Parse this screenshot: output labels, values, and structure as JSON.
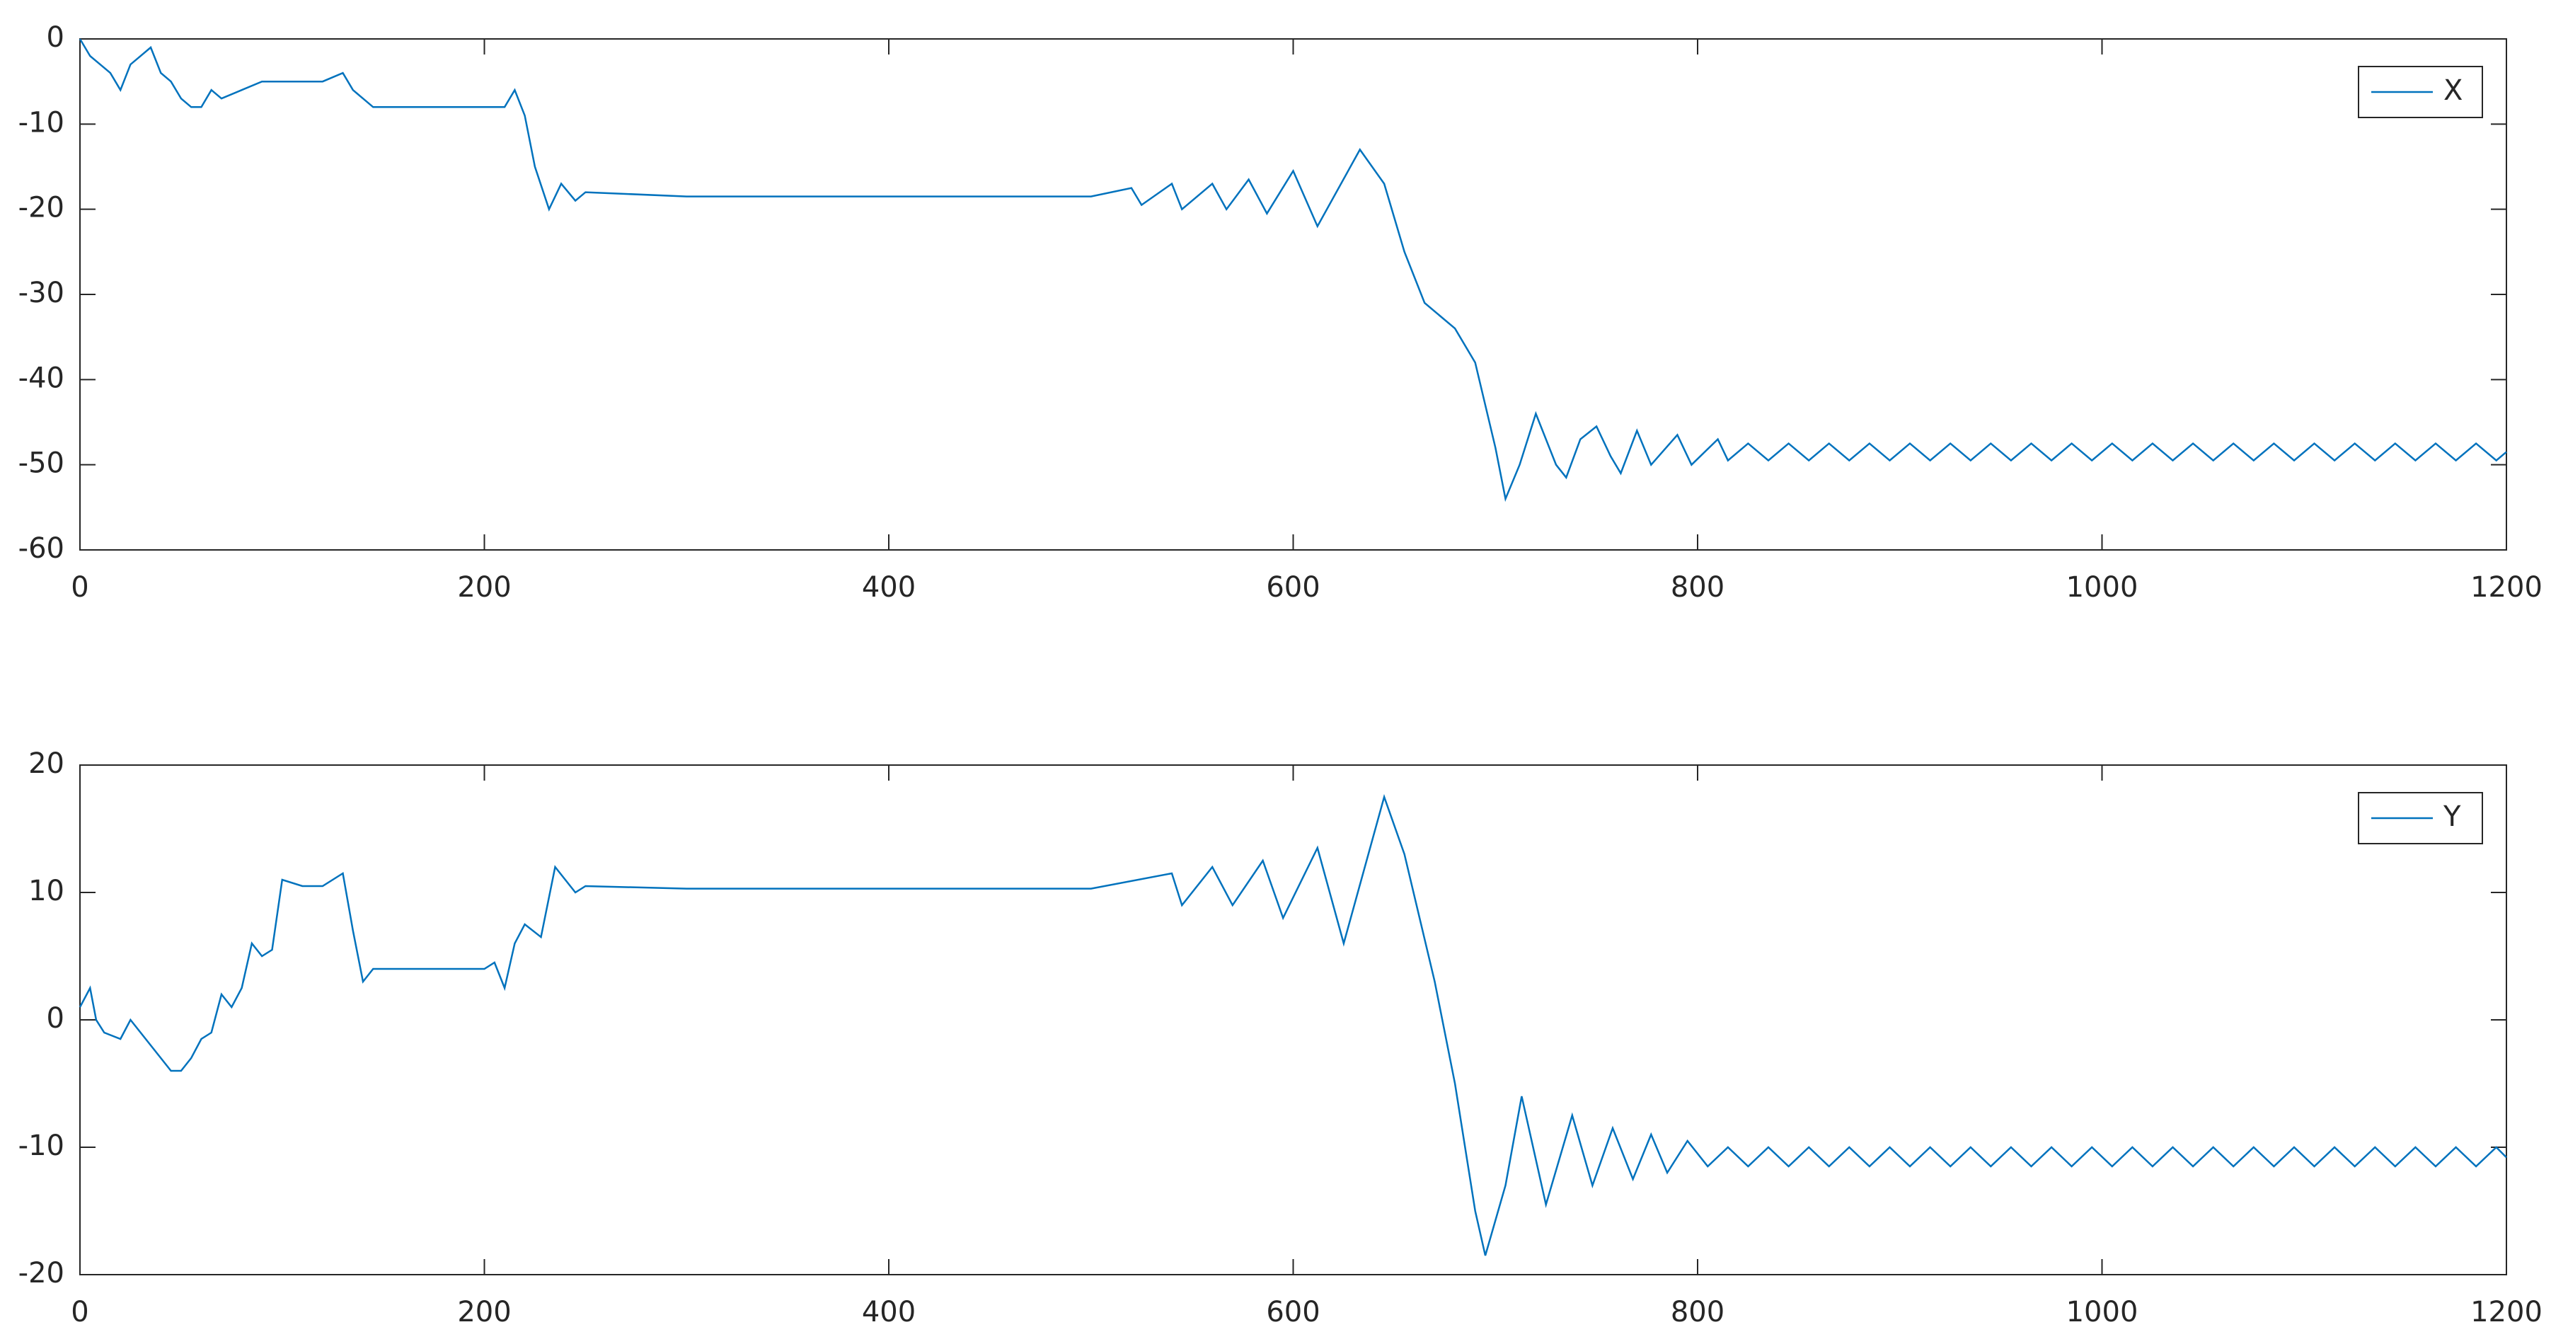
{
  "chart_data": [
    {
      "type": "line",
      "legend": "upper right",
      "x": [
        0,
        5,
        10,
        15,
        20,
        25,
        30,
        35,
        40,
        45,
        50,
        55,
        60,
        65,
        70,
        80,
        90,
        100,
        110,
        120,
        130,
        135,
        140,
        145,
        150,
        175,
        200,
        210,
        215,
        220,
        225,
        232,
        238,
        245,
        250,
        300,
        350,
        400,
        450,
        500,
        520,
        525,
        540,
        545,
        560,
        567,
        578,
        587,
        600,
        612,
        633,
        645,
        655,
        665,
        680,
        690,
        700,
        705,
        712,
        720,
        730,
        735,
        742,
        750,
        757,
        762,
        770,
        777,
        790,
        797,
        810,
        815,
        825,
        835,
        845,
        855,
        865,
        875,
        885,
        895,
        905,
        915,
        925,
        935,
        945,
        955,
        965,
        975,
        985,
        995,
        1005,
        1015,
        1025,
        1035,
        1045,
        1055,
        1065,
        1075,
        1085,
        1095,
        1105,
        1115,
        1125,
        1135,
        1145,
        1155,
        1165,
        1175,
        1185,
        1195,
        1200
      ],
      "series": [
        {
          "name": "X",
          "color": "#0072bd",
          "values": [
            0,
            -2,
            -3,
            -4,
            -6,
            -3,
            -2,
            -1,
            -4,
            -5,
            -7,
            -8,
            -8,
            -6,
            -7,
            -6,
            -5,
            -5,
            -5,
            -5,
            -4,
            -6,
            -7,
            -8,
            -8,
            -8,
            -8,
            -8,
            -6,
            -9,
            -15,
            -20,
            -17,
            -19,
            -18,
            -18.5,
            -18.5,
            -18.5,
            -18.5,
            -18.5,
            -17.5,
            -19.5,
            -17,
            -20,
            -17,
            -20,
            -16.5,
            -20.5,
            -15.5,
            -22,
            -13,
            -17,
            -25,
            -31,
            -34,
            -38,
            -48,
            -54,
            -50,
            -44,
            -50,
            -51.5,
            -47,
            -45.5,
            -49,
            -51,
            -46,
            -50,
            -46.5,
            -50,
            -47,
            -49.5,
            -47.5,
            -49.5,
            -47.5,
            -49.5,
            -47.5,
            -49.5,
            -47.5,
            -49.5,
            -47.5,
            -49.5,
            -47.5,
            -49.5,
            -47.5,
            -49.5,
            -47.5,
            -49.5,
            -47.5,
            -49.5,
            -47.5,
            -49.5,
            -47.5,
            -49.5,
            -47.5,
            -49.5,
            -47.5,
            -49.5,
            -47.5,
            -49.5,
            -47.5,
            -49.5,
            -47.5,
            -49.5,
            -47.5,
            -49.5,
            -47.5,
            -49.5,
            -47.5,
            -49.5,
            -48.5
          ]
        }
      ],
      "xlim": [
        0,
        1200
      ],
      "xticks": [
        0,
        200,
        400,
        600,
        800,
        1000,
        1200
      ],
      "ylim": [
        -60,
        0
      ],
      "yticks": [
        -60,
        -50,
        -40,
        -30,
        -20,
        -10,
        0
      ]
    },
    {
      "type": "line",
      "legend": "upper right",
      "x": [
        0,
        5,
        8,
        12,
        20,
        25,
        30,
        35,
        40,
        45,
        50,
        55,
        60,
        65,
        70,
        75,
        80,
        85,
        90,
        95,
        100,
        110,
        120,
        130,
        135,
        140,
        145,
        160,
        180,
        200,
        205,
        210,
        215,
        220,
        228,
        235,
        245,
        250,
        300,
        400,
        500,
        540,
        545,
        560,
        570,
        585,
        595,
        612,
        625,
        645,
        655,
        670,
        680,
        690,
        695,
        705,
        713,
        725,
        738,
        748,
        758,
        768,
        777,
        785,
        795,
        805,
        815,
        825,
        835,
        845,
        855,
        865,
        875,
        885,
        895,
        905,
        915,
        925,
        935,
        945,
        955,
        965,
        975,
        985,
        995,
        1005,
        1015,
        1025,
        1035,
        1045,
        1055,
        1065,
        1075,
        1085,
        1095,
        1105,
        1115,
        1125,
        1135,
        1145,
        1155,
        1165,
        1175,
        1185,
        1195,
        1200
      ],
      "series": [
        {
          "name": "Y",
          "color": "#0072bd",
          "values": [
            1,
            2.5,
            0,
            -1,
            -1.5,
            0,
            -1,
            -2,
            -3,
            -4,
            -4,
            -3,
            -1.5,
            -1,
            2,
            1,
            2.5,
            6,
            5,
            5.5,
            11,
            10.5,
            10.5,
            11.5,
            7,
            3,
            4,
            4,
            4,
            4,
            4.5,
            2.5,
            6,
            7.5,
            6.5,
            12,
            10,
            10.5,
            10.3,
            10.3,
            10.3,
            11.5,
            9,
            12,
            9,
            12.5,
            8,
            13.5,
            6,
            17.5,
            13,
            3,
            -5,
            -15,
            -18.5,
            -13,
            -6,
            -14.5,
            -7.5,
            -13,
            -8.5,
            -12.5,
            -9,
            -12,
            -9.5,
            -11.5,
            -10,
            -11.5,
            -10,
            -11.5,
            -10,
            -11.5,
            -10,
            -11.5,
            -10,
            -11.5,
            -10,
            -11.5,
            -10,
            -11.5,
            -10,
            -11.5,
            -10,
            -11.5,
            -10,
            -11.5,
            -10,
            -11.5,
            -10,
            -11.5,
            -10,
            -11.5,
            -10,
            -11.5,
            -10,
            -11.5,
            -10,
            -11.5,
            -10,
            -11.5,
            -10,
            -11.5,
            -10,
            -11.5,
            -10,
            -10.8
          ]
        }
      ],
      "xlim": [
        0,
        1200
      ],
      "xticks": [
        0,
        200,
        400,
        600,
        800,
        1000,
        1200
      ],
      "ylim": [
        -20,
        20
      ],
      "yticks": [
        -20,
        -10,
        0,
        10,
        20
      ]
    }
  ]
}
